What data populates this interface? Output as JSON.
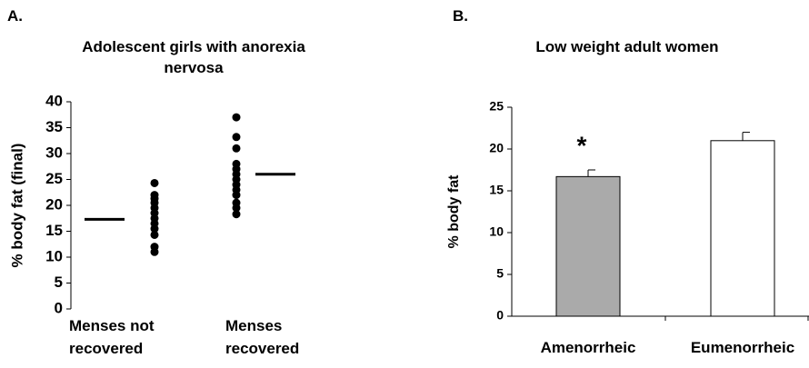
{
  "chart_data": [
    {
      "type": "strip",
      "panel_label": "A.",
      "title": "Adolescent girls with anorexia nervosa",
      "y_label": "% body fat (final)",
      "categories": [
        "Menses not recovered",
        "Menses recovered"
      ],
      "points": [
        [
          24.3,
          22.0,
          21.3,
          20.5,
          19.5,
          18.5,
          17.5,
          16.5,
          15.5,
          14.3,
          12.0,
          11.0
        ],
        [
          37.0,
          33.2,
          31.0,
          28.0,
          27.0,
          26.0,
          25.0,
          24.0,
          23.0,
          22.0,
          20.5,
          19.5,
          18.3
        ]
      ],
      "means": [
        17.3,
        26.0
      ],
      "color": "#000000",
      "ylim": [
        0,
        40
      ],
      "yticks": [
        0,
        5,
        10,
        15,
        20,
        25,
        30,
        35,
        40
      ]
    },
    {
      "type": "bar",
      "panel_label": "B.",
      "title": "Low weight adult women",
      "y_label": "% body fat",
      "categories": [
        "Amenorrheic",
        "Eumenorrheic"
      ],
      "values": [
        16.7,
        21.0
      ],
      "errors": [
        0.8,
        1.0
      ],
      "colors": [
        "#aaaaaa",
        "#ffffff"
      ],
      "annotations": [
        "*",
        null
      ],
      "ylim": [
        0,
        25
      ],
      "yticks": [
        0,
        5,
        10,
        15,
        20,
        25
      ]
    }
  ]
}
